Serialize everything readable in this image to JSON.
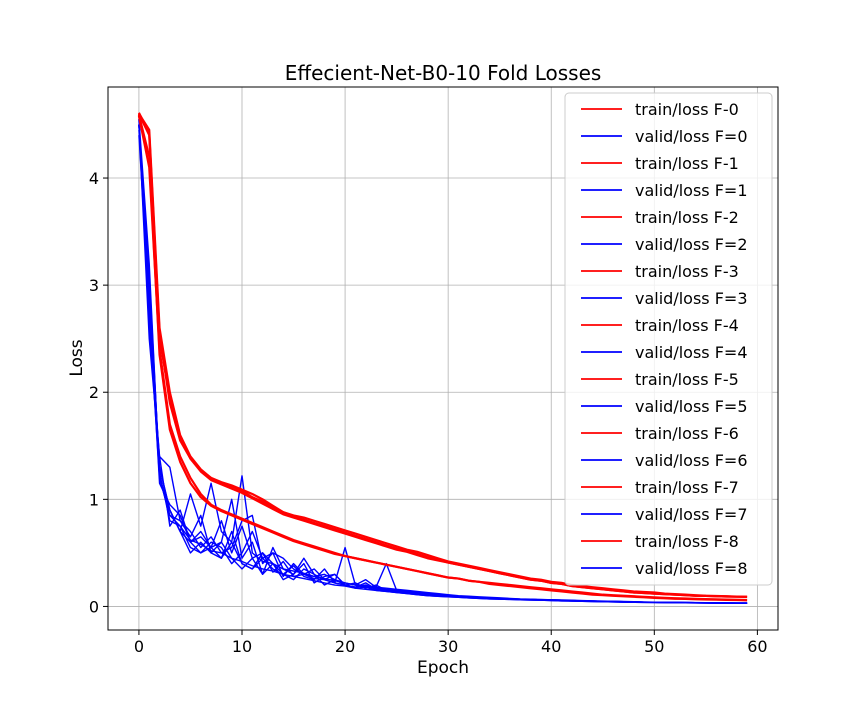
{
  "chart_data": {
    "type": "line",
    "title": "Effecient-Net-B0-10 Fold Losses",
    "xlabel": "Epoch",
    "ylabel": "Loss",
    "xlim": [
      -3,
      62
    ],
    "ylim": [
      -0.22,
      4.85
    ],
    "xticks": [
      0,
      10,
      20,
      30,
      40,
      50,
      60
    ],
    "yticks": [
      0,
      1,
      2,
      3,
      4
    ],
    "grid": true,
    "legend_position": "top-right",
    "colors": {
      "train": "#ff0000",
      "valid": "#0000ff"
    },
    "series": [
      {
        "name": "train/loss F-0",
        "kind": "train",
        "values": [
          4.6,
          4.4,
          2.55,
          1.9,
          1.55,
          1.38,
          1.27,
          1.2,
          1.16,
          1.13,
          1.09,
          1.05,
          1.0,
          0.94,
          0.88,
          0.85,
          0.83,
          0.8,
          0.77,
          0.74,
          0.71,
          0.68,
          0.65,
          0.62,
          0.59,
          0.56,
          0.53,
          0.51,
          0.48,
          0.45,
          0.42,
          0.4,
          0.38,
          0.36,
          0.34,
          0.32,
          0.3,
          0.28,
          0.26,
          0.25,
          0.23,
          0.22,
          0.2,
          0.19,
          0.18,
          0.17,
          0.16,
          0.15,
          0.14,
          0.135,
          0.13,
          0.12,
          0.115,
          0.11,
          0.105,
          0.1,
          0.098,
          0.095,
          0.092,
          0.09
        ]
      },
      {
        "name": "valid/loss F=0",
        "kind": "valid",
        "values": [
          4.55,
          3.2,
          1.2,
          0.85,
          0.75,
          0.62,
          0.58,
          0.52,
          0.5,
          0.45,
          0.42,
          0.38,
          0.35,
          0.33,
          0.3,
          0.28,
          0.26,
          0.24,
          0.22,
          0.2,
          0.19,
          0.17,
          0.16,
          0.15,
          0.14,
          0.13,
          0.12,
          0.11,
          0.1,
          0.095,
          0.09,
          0.085,
          0.08,
          0.075,
          0.07,
          0.068,
          0.065,
          0.062,
          0.06,
          0.058,
          0.055,
          0.052,
          0.05,
          0.048,
          0.046,
          0.044,
          0.042,
          0.04,
          0.039,
          0.038,
          0.037,
          0.036,
          0.035,
          0.034,
          0.033,
          0.032,
          0.031,
          0.03,
          0.03,
          0.03
        ]
      },
      {
        "name": "train/loss F-1",
        "kind": "train",
        "values": [
          4.58,
          4.1,
          2.4,
          1.7,
          1.4,
          1.2,
          1.05,
          0.95,
          0.9,
          0.86,
          0.82,
          0.78,
          0.74,
          0.7,
          0.66,
          0.62,
          0.59,
          0.56,
          0.53,
          0.5,
          0.47,
          0.45,
          0.43,
          0.41,
          0.39,
          0.37,
          0.35,
          0.33,
          0.31,
          0.29,
          0.27,
          0.26,
          0.24,
          0.23,
          0.21,
          0.2,
          0.19,
          0.18,
          0.17,
          0.16,
          0.15,
          0.14,
          0.13,
          0.12,
          0.11,
          0.105,
          0.1,
          0.095,
          0.09,
          0.085,
          0.08,
          0.076,
          0.072,
          0.07,
          0.067,
          0.065,
          0.063,
          0.061,
          0.06,
          0.058
        ]
      },
      {
        "name": "valid/loss F=1",
        "kind": "valid",
        "values": [
          4.5,
          3.0,
          1.3,
          0.9,
          0.7,
          1.05,
          0.75,
          1.15,
          0.7,
          0.6,
          1.22,
          0.5,
          0.42,
          0.4,
          0.35,
          0.33,
          0.31,
          0.28,
          0.26,
          0.24,
          0.22,
          0.2,
          0.19,
          0.18,
          0.17,
          0.16,
          0.15,
          0.14,
          0.13,
          0.12,
          0.11,
          0.1,
          0.095,
          0.09,
          0.085,
          0.08,
          0.075,
          0.07,
          0.068,
          0.065,
          0.062,
          0.06,
          0.058,
          0.055,
          0.052,
          0.05,
          0.048,
          0.046,
          0.044,
          0.042,
          0.04,
          0.039,
          0.038,
          0.037,
          0.036,
          0.035,
          0.034,
          0.033,
          0.032,
          0.032
        ]
      },
      {
        "name": "train/loss F-2",
        "kind": "train",
        "values": [
          4.6,
          4.45,
          2.6,
          2.0,
          1.6,
          1.4,
          1.28,
          1.2,
          1.15,
          1.12,
          1.08,
          1.02,
          0.98,
          0.93,
          0.88,
          0.84,
          0.81,
          0.78,
          0.75,
          0.72,
          0.69,
          0.66,
          0.63,
          0.6,
          0.57,
          0.54,
          0.52,
          0.49,
          0.46,
          0.44,
          0.41,
          0.39,
          0.37,
          0.35,
          0.33,
          0.31,
          0.29,
          0.27,
          0.25,
          0.24,
          0.22,
          0.21,
          0.19,
          0.18,
          0.17,
          0.16,
          0.15,
          0.14,
          0.13,
          0.125,
          0.12,
          0.115,
          0.11,
          0.105,
          0.1,
          0.098,
          0.095,
          0.093,
          0.091,
          0.09
        ]
      },
      {
        "name": "valid/loss F=2",
        "kind": "valid",
        "values": [
          4.5,
          2.5,
          1.4,
          1.3,
          0.8,
          0.65,
          0.85,
          0.5,
          0.6,
          1.0,
          0.45,
          0.6,
          0.3,
          0.55,
          0.35,
          0.3,
          0.45,
          0.3,
          0.25,
          0.22,
          0.55,
          0.2,
          0.18,
          0.17,
          0.16,
          0.15,
          0.14,
          0.13,
          0.12,
          0.11,
          0.1,
          0.095,
          0.09,
          0.085,
          0.08,
          0.075,
          0.07,
          0.068,
          0.065,
          0.062,
          0.06,
          0.058,
          0.055,
          0.052,
          0.05,
          0.048,
          0.046,
          0.044,
          0.042,
          0.04,
          0.039,
          0.038,
          0.037,
          0.036,
          0.035,
          0.034,
          0.033,
          0.032,
          0.031,
          0.031
        ]
      },
      {
        "name": "train/loss F-3",
        "kind": "train",
        "values": [
          4.59,
          4.2,
          2.35,
          1.65,
          1.35,
          1.15,
          1.02,
          0.94,
          0.89,
          0.85,
          0.81,
          0.77,
          0.73,
          0.69,
          0.65,
          0.61,
          0.58,
          0.55,
          0.52,
          0.49,
          0.47,
          0.45,
          0.43,
          0.41,
          0.39,
          0.37,
          0.35,
          0.33,
          0.31,
          0.29,
          0.27,
          0.26,
          0.24,
          0.23,
          0.22,
          0.21,
          0.2,
          0.19,
          0.18,
          0.17,
          0.16,
          0.15,
          0.14,
          0.13,
          0.12,
          0.11,
          0.105,
          0.1,
          0.095,
          0.09,
          0.085,
          0.08,
          0.077,
          0.074,
          0.071,
          0.068,
          0.066,
          0.064,
          0.062,
          0.06
        ]
      },
      {
        "name": "valid/loss F=3",
        "kind": "valid",
        "values": [
          4.4,
          2.8,
          1.15,
          0.95,
          0.85,
          0.6,
          0.7,
          0.55,
          0.8,
          0.5,
          0.75,
          0.45,
          0.5,
          0.32,
          0.42,
          0.28,
          0.3,
          0.26,
          0.25,
          0.22,
          0.2,
          0.18,
          0.2,
          0.16,
          0.15,
          0.14,
          0.13,
          0.12,
          0.115,
          0.11,
          0.1,
          0.095,
          0.09,
          0.085,
          0.08,
          0.075,
          0.07,
          0.068,
          0.065,
          0.062,
          0.06,
          0.058,
          0.055,
          0.052,
          0.05,
          0.048,
          0.046,
          0.044,
          0.042,
          0.04,
          0.039,
          0.038,
          0.037,
          0.036,
          0.035,
          0.034,
          0.033,
          0.032,
          0.031,
          0.031
        ]
      },
      {
        "name": "train/loss F-4",
        "kind": "train",
        "values": [
          4.61,
          4.42,
          2.5,
          1.95,
          1.58,
          1.38,
          1.26,
          1.18,
          1.14,
          1.1,
          1.06,
          1.01,
          0.96,
          0.91,
          0.86,
          0.83,
          0.8,
          0.77,
          0.74,
          0.71,
          0.68,
          0.65,
          0.62,
          0.59,
          0.56,
          0.53,
          0.51,
          0.48,
          0.45,
          0.43,
          0.41,
          0.39,
          0.37,
          0.35,
          0.33,
          0.31,
          0.29,
          0.27,
          0.25,
          0.24,
          0.22,
          0.21,
          0.19,
          0.18,
          0.17,
          0.16,
          0.15,
          0.14,
          0.13,
          0.125,
          0.12,
          0.115,
          0.11,
          0.105,
          0.1,
          0.098,
          0.095,
          0.093,
          0.091,
          0.089
        ]
      },
      {
        "name": "valid/loss F=4",
        "kind": "valid",
        "values": [
          4.5,
          3.1,
          1.25,
          0.8,
          0.75,
          0.55,
          0.5,
          0.6,
          0.55,
          0.4,
          0.5,
          0.7,
          0.45,
          0.35,
          0.3,
          0.38,
          0.28,
          0.25,
          0.35,
          0.22,
          0.2,
          0.18,
          0.22,
          0.16,
          0.15,
          0.14,
          0.13,
          0.12,
          0.11,
          0.1,
          0.095,
          0.09,
          0.085,
          0.08,
          0.075,
          0.07,
          0.068,
          0.065,
          0.062,
          0.06,
          0.058,
          0.055,
          0.052,
          0.05,
          0.048,
          0.046,
          0.044,
          0.042,
          0.04,
          0.039,
          0.038,
          0.037,
          0.036,
          0.035,
          0.034,
          0.033,
          0.032,
          0.031,
          0.03,
          0.03
        ]
      },
      {
        "name": "valid/loss F=5",
        "kind": "valid",
        "values": [
          4.45,
          2.9,
          1.3,
          0.9,
          0.7,
          0.6,
          0.65,
          0.55,
          0.45,
          0.6,
          0.4,
          0.35,
          0.5,
          0.4,
          0.3,
          0.25,
          0.35,
          0.3,
          0.2,
          0.25,
          0.2,
          0.22,
          0.17,
          0.2,
          0.15,
          0.14,
          0.13,
          0.12,
          0.11,
          0.105,
          0.1,
          0.095,
          0.09,
          0.085,
          0.08,
          0.075,
          0.07,
          0.068,
          0.065,
          0.062,
          0.06,
          0.058,
          0.055,
          0.052,
          0.05,
          0.048,
          0.046,
          0.044,
          0.042,
          0.04,
          0.039,
          0.038,
          0.037,
          0.036,
          0.035,
          0.034,
          0.033,
          0.032,
          0.031,
          0.03
        ]
      },
      {
        "name": "valid/loss F=6",
        "kind": "valid",
        "values": [
          4.5,
          3.0,
          1.2,
          0.85,
          0.8,
          0.7,
          0.55,
          0.65,
          0.5,
          0.55,
          0.8,
          0.85,
          0.4,
          0.5,
          0.45,
          0.35,
          0.3,
          0.28,
          0.3,
          0.25,
          0.22,
          0.2,
          0.25,
          0.18,
          0.4,
          0.15,
          0.14,
          0.13,
          0.12,
          0.11,
          0.1,
          0.095,
          0.09,
          0.085,
          0.08,
          0.075,
          0.07,
          0.068,
          0.065,
          0.062,
          0.06,
          0.058,
          0.055,
          0.052,
          0.05,
          0.048,
          0.046,
          0.044,
          0.042,
          0.04,
          0.039,
          0.038,
          0.037,
          0.036,
          0.035,
          0.034,
          0.033,
          0.032,
          0.031,
          0.031
        ]
      },
      {
        "name": "valid/loss F=7",
        "kind": "valid",
        "values": [
          4.5,
          2.7,
          1.2,
          0.9,
          0.7,
          0.5,
          0.6,
          0.5,
          0.45,
          0.7,
          0.4,
          0.35,
          0.45,
          0.5,
          0.28,
          0.4,
          0.3,
          0.35,
          0.25,
          0.3,
          0.2,
          0.18,
          0.2,
          0.16,
          0.15,
          0.14,
          0.13,
          0.12,
          0.11,
          0.1,
          0.095,
          0.09,
          0.085,
          0.08,
          0.075,
          0.07,
          0.068,
          0.065,
          0.062,
          0.06,
          0.058,
          0.055,
          0.052,
          0.05,
          0.048,
          0.046,
          0.044,
          0.042,
          0.04,
          0.039,
          0.038,
          0.037,
          0.036,
          0.035,
          0.034,
          0.033,
          0.032,
          0.031,
          0.03,
          0.03
        ]
      },
      {
        "name": "valid/loss F=8",
        "kind": "valid",
        "values": [
          4.55,
          2.6,
          1.4,
          0.75,
          0.9,
          0.6,
          0.5,
          0.55,
          0.6,
          0.45,
          0.35,
          0.45,
          0.3,
          0.4,
          0.25,
          0.3,
          0.4,
          0.22,
          0.28,
          0.3,
          0.2,
          0.17,
          0.18,
          0.15,
          0.14,
          0.13,
          0.12,
          0.11,
          0.1,
          0.095,
          0.09,
          0.085,
          0.08,
          0.075,
          0.07,
          0.068,
          0.065,
          0.062,
          0.06,
          0.058,
          0.055,
          0.052,
          0.05,
          0.048,
          0.046,
          0.044,
          0.042,
          0.04,
          0.039,
          0.038,
          0.037,
          0.036,
          0.035,
          0.034,
          0.033,
          0.032,
          0.031,
          0.03,
          0.03,
          0.03
        ]
      },
      {
        "name": "train/loss F-5",
        "kind": "train",
        "values": []
      },
      {
        "name": "train/loss F-6",
        "kind": "train",
        "values": []
      },
      {
        "name": "train/loss F-7",
        "kind": "train",
        "values": []
      },
      {
        "name": "train/loss F-8",
        "kind": "train",
        "values": []
      }
    ],
    "legend": [
      "train/loss F-0",
      "valid/loss F=0",
      "train/loss F-1",
      "valid/loss F=1",
      "train/loss F-2",
      "valid/loss F=2",
      "train/loss F-3",
      "valid/loss F=3",
      "train/loss F-4",
      "valid/loss F=4",
      "train/loss F-5",
      "valid/loss F=5",
      "train/loss F-6",
      "valid/loss F=6",
      "train/loss F-7",
      "valid/loss F=7",
      "train/loss F-8",
      "valid/loss F=8"
    ]
  }
}
